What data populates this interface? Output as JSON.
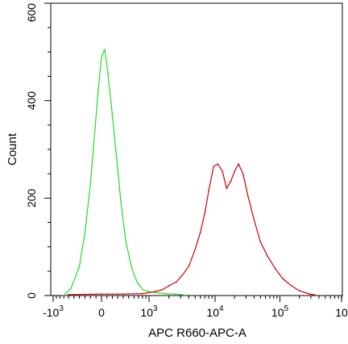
{
  "chart_data": {
    "type": "line",
    "title": "",
    "xlabel": "APC R660-APC-A",
    "ylabel": "Count",
    "x_scale": "biexponential",
    "xlim": [
      -1000,
      1000000
    ],
    "ylim": [
      0,
      600
    ],
    "grid": false,
    "legend": "none",
    "x_ticks": [
      {
        "label": "-10",
        "exp": "3",
        "value": -1000
      },
      {
        "label": "0",
        "exp": "",
        "value": 0
      },
      {
        "label": "10",
        "exp": "3",
        "value": 1000
      },
      {
        "label": "10",
        "exp": "4",
        "value": 10000
      },
      {
        "label": "10",
        "exp": "5",
        "value": 100000
      },
      {
        "label": "10",
        "exp": "",
        "value": 1000000
      }
    ],
    "y_ticks": [
      {
        "label": "0",
        "value": 0
      },
      {
        "label": "200",
        "value": 200
      },
      {
        "label": "400",
        "value": 400
      },
      {
        "label": "600",
        "value": 600
      }
    ],
    "series": [
      {
        "color": "#22dd22",
        "x": [
          -700,
          -550,
          -400,
          -300,
          -200,
          -120,
          -60,
          0,
          60,
          120,
          200,
          280,
          360,
          450,
          560,
          680,
          820,
          1000,
          1300,
          1800,
          2500,
          3500
        ],
        "values": [
          0,
          15,
          60,
          130,
          230,
          340,
          420,
          490,
          505,
          455,
          370,
          280,
          190,
          110,
          55,
          25,
          12,
          8,
          6,
          4,
          3,
          1
        ]
      },
      {
        "color": "#cc0000",
        "x": [
          -600,
          0,
          400,
          800,
          1200,
          1600,
          2000,
          2600,
          3200,
          4000,
          5000,
          6000,
          7000,
          8000,
          9500,
          11000,
          13000,
          15000,
          17500,
          20000,
          23000,
          27000,
          32000,
          40000,
          50000,
          65000,
          85000,
          110000,
          150000,
          200000,
          270000,
          350000
        ],
        "values": [
          2,
          3,
          3,
          4,
          8,
          12,
          20,
          28,
          42,
          60,
          95,
          130,
          170,
          215,
          265,
          270,
          255,
          220,
          235,
          255,
          270,
          250,
          205,
          155,
          110,
          80,
          55,
          35,
          20,
          10,
          4,
          1
        ]
      }
    ]
  }
}
